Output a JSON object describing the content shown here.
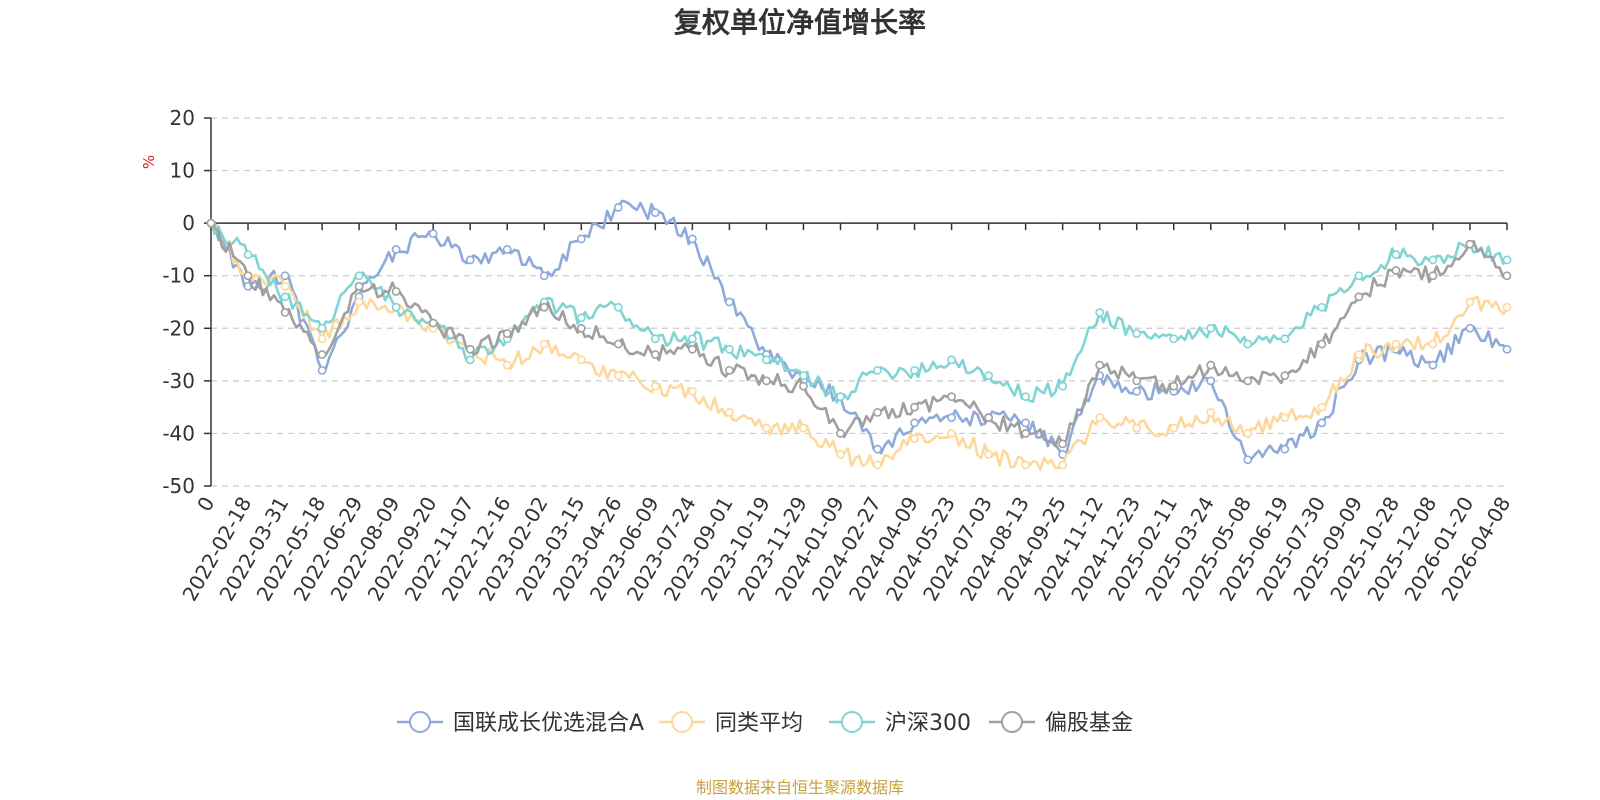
{
  "chart_data": {
    "type": "line",
    "title": "复权单位净值增长率",
    "ylabel": "%",
    "xlabel": "",
    "ylim": [
      -50,
      20
    ],
    "yticks": [
      20,
      10,
      0,
      -10,
      -20,
      -30,
      -40,
      -50
    ],
    "grid": true,
    "legend_position": "bottom-center",
    "x": [
      "0",
      "2022-02-18",
      "2022-03-31",
      "2022-05-18",
      "2022-06-29",
      "2022-08-09",
      "2022-09-20",
      "2022-11-07",
      "2022-12-16",
      "2023-02-02",
      "2023-03-15",
      "2023-04-26",
      "2023-06-09",
      "2023-07-24",
      "2023-09-01",
      "2023-10-19",
      "2023-11-29",
      "2024-01-09",
      "2024-02-27",
      "2024-04-09",
      "2024-05-23",
      "2024-07-03",
      "2024-08-13",
      "2024-09-25",
      "2024-11-12",
      "2024-12-23",
      "2025-02-11",
      "2025-03-24",
      "2025-05-08",
      "2025-06-19",
      "2025-07-30",
      "2025-09-09",
      "2025-10-28",
      "2025-12-08",
      "2026-01-20",
      "2026-04-08"
    ],
    "series": [
      {
        "name": "国联成长优选混合A",
        "color": "#8eaadb",
        "values": [
          0,
          -12,
          -10,
          -28,
          -14,
          -5,
          -2,
          -7,
          -5,
          -10,
          -3,
          3,
          2,
          -3,
          -15,
          -25,
          -30,
          -33,
          -43,
          -38,
          -37,
          -37,
          -38,
          -44,
          -29,
          -32,
          -32,
          -30,
          -45,
          -43,
          -38,
          -26,
          -24,
          -27,
          -20,
          -24
        ]
      },
      {
        "name": "同类平均",
        "color": "#fdd89a",
        "values": [
          0,
          -10,
          -12,
          -22,
          -15,
          -16,
          -20,
          -24,
          -27,
          -23,
          -26,
          -29,
          -31,
          -32,
          -36,
          -39,
          -39,
          -44,
          -46,
          -41,
          -40,
          -44,
          -46,
          -46,
          -37,
          -39,
          -39,
          -36,
          -40,
          -37,
          -35,
          -25,
          -23,
          -23,
          -15,
          -16
        ]
      },
      {
        "name": "沪深300",
        "color": "#80d4d4",
        "values": [
          0,
          -6,
          -14,
          -20,
          -10,
          -16,
          -19,
          -26,
          -22,
          -15,
          -18,
          -16,
          -22,
          -22,
          -24,
          -26,
          -29,
          -33,
          -28,
          -28,
          -26,
          -29,
          -33,
          -31,
          -17,
          -21,
          -22,
          -20,
          -23,
          -22,
          -16,
          -10,
          -6,
          -7,
          -4,
          -7
        ]
      },
      {
        "name": "偏股基金",
        "color": "#a0a0a0",
        "values": [
          0,
          -10,
          -17,
          -25,
          -12,
          -13,
          -19,
          -24,
          -21,
          -16,
          -20,
          -23,
          -25,
          -24,
          -28,
          -30,
          -31,
          -40,
          -36,
          -35,
          -33,
          -37,
          -40,
          -42,
          -27,
          -30,
          -31,
          -27,
          -30,
          -29,
          -23,
          -14,
          -9,
          -10,
          -4,
          -10
        ]
      }
    ],
    "legend": [
      "国联成长优选混合A",
      "同类平均",
      "沪深300",
      "偏股基金"
    ],
    "source": "制图数据来自恒生聚源数据库"
  }
}
